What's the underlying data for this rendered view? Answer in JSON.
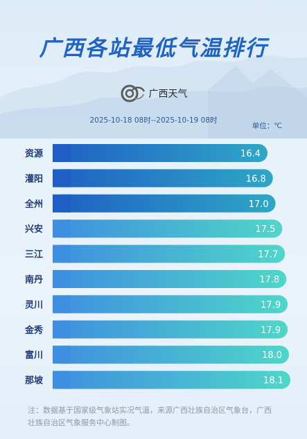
{
  "header": {
    "title": "广西各站最低气温排行",
    "logo_text": "广西天气",
    "period": "2025-10-18 08时--2025-10-19 08时",
    "unit": "单位：℃"
  },
  "colors": {
    "title": "#1f63c6",
    "top_bar_start": "#1f5fc4",
    "top_bar_end": "#2ea7c6",
    "bar_start": "#3f8fe0",
    "bar_end": "#4fd6c8",
    "label": "#1f3c78"
  },
  "chart_data": {
    "type": "bar",
    "orientation": "horizontal",
    "title": "广西各站最低气温排行",
    "categories": [
      "资源",
      "灌阳",
      "全州",
      "兴安",
      "三江",
      "南丹",
      "灵川",
      "金秀",
      "富川",
      "那坡"
    ],
    "values": [
      16.4,
      16.8,
      17.0,
      17.5,
      17.7,
      17.8,
      17.9,
      17.9,
      18.0,
      18.1
    ],
    "value_labels": [
      "16.4",
      "16.8",
      "17.0",
      "17.5",
      "17.7",
      "17.8",
      "17.9",
      "17.9",
      "18.0",
      "18.1"
    ],
    "highlighted_top": 3,
    "unit": "℃",
    "grid": false,
    "legend": "none"
  },
  "footer": {
    "note": "注：数据基于国家级气象站实况气温，来源广西壮族自治区气象台，广西壮族自治区气象服务中心制图。"
  }
}
